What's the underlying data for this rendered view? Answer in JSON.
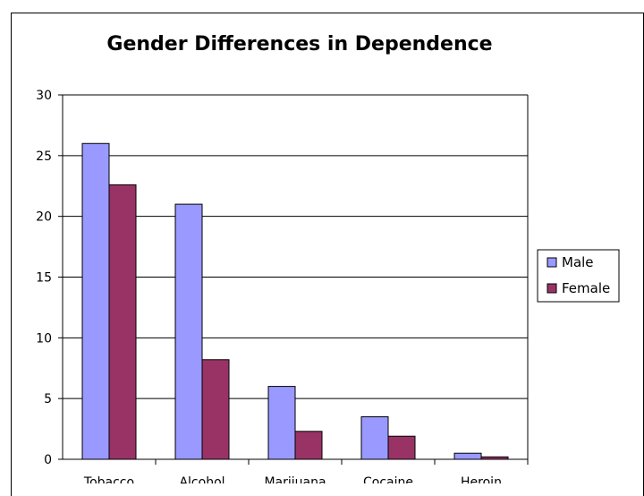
{
  "chart_data": {
    "type": "bar",
    "title": "Gender Differences in Dependence",
    "xlabel": "",
    "ylabel": "",
    "ylim": [
      0,
      30
    ],
    "yticks": [
      0,
      5,
      10,
      15,
      20,
      25,
      30
    ],
    "categories": [
      "Tobacco",
      "Alcohol",
      "Marijuana",
      "Cocaine",
      "Heroin"
    ],
    "series": [
      {
        "name": "Male",
        "values": [
          26,
          21,
          6,
          3.5,
          0.5
        ],
        "color": "#9999ff"
      },
      {
        "name": "Female",
        "values": [
          22.6,
          8.2,
          2.3,
          1.9,
          0.2
        ],
        "color": "#993366"
      }
    ],
    "grid": true,
    "legend": "right",
    "background": "#ffffff"
  }
}
